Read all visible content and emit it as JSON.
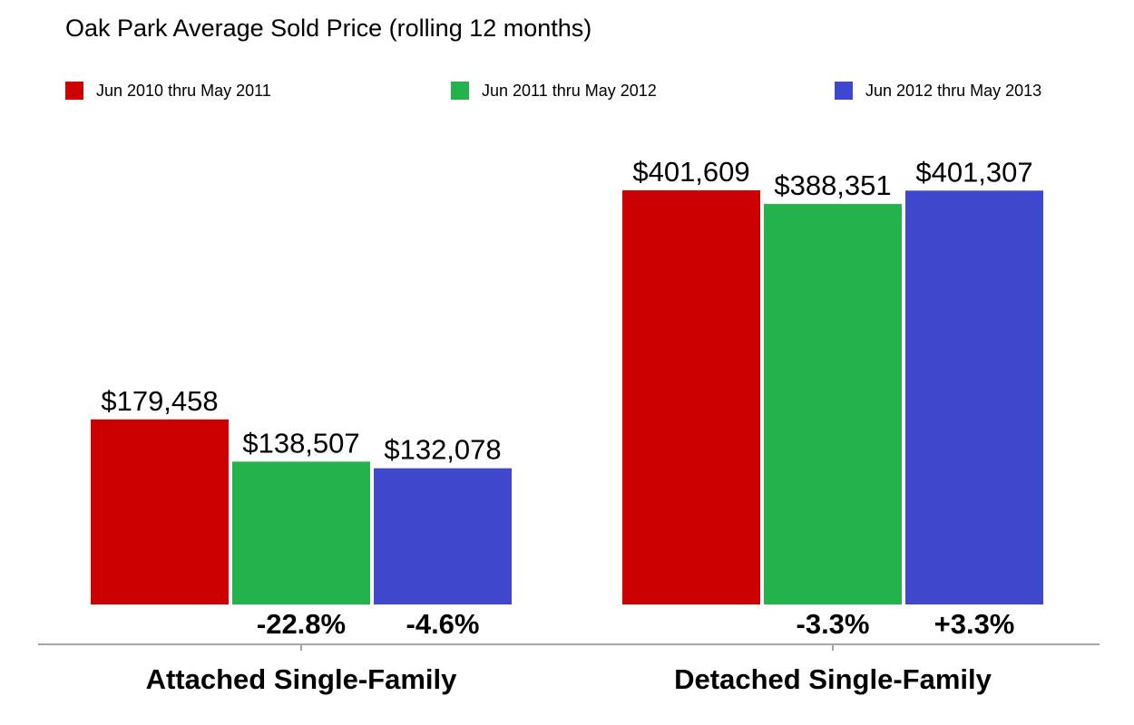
{
  "chart_data": {
    "type": "bar",
    "title": "Oak Park Average Sold Price (rolling 12 months)",
    "legend_position": "top",
    "grid": false,
    "categories": [
      "Attached Single-Family",
      "Detached Single-Family"
    ],
    "ylim": [
      0,
      401609
    ],
    "series": [
      {
        "name": "Jun 2010 thru May 2011",
        "color": "#cc0000",
        "values": [
          179458,
          401609
        ],
        "value_labels": [
          "$179,458",
          "$401,609"
        ],
        "change_labels": [
          "",
          ""
        ]
      },
      {
        "name": "Jun 2011 thru May 2012",
        "color": "#24b24c",
        "values": [
          138507,
          388351
        ],
        "value_labels": [
          "$138,507",
          "$388,351"
        ],
        "change_labels": [
          "-22.8%",
          "-3.3%"
        ]
      },
      {
        "name": "Jun 2012 thru May 2013",
        "color": "#3f48cc",
        "values": [
          132078,
          401307
        ],
        "value_labels": [
          "$132,078",
          "$401,307"
        ],
        "change_labels": [
          "-4.6%",
          "+3.3%"
        ]
      }
    ]
  }
}
